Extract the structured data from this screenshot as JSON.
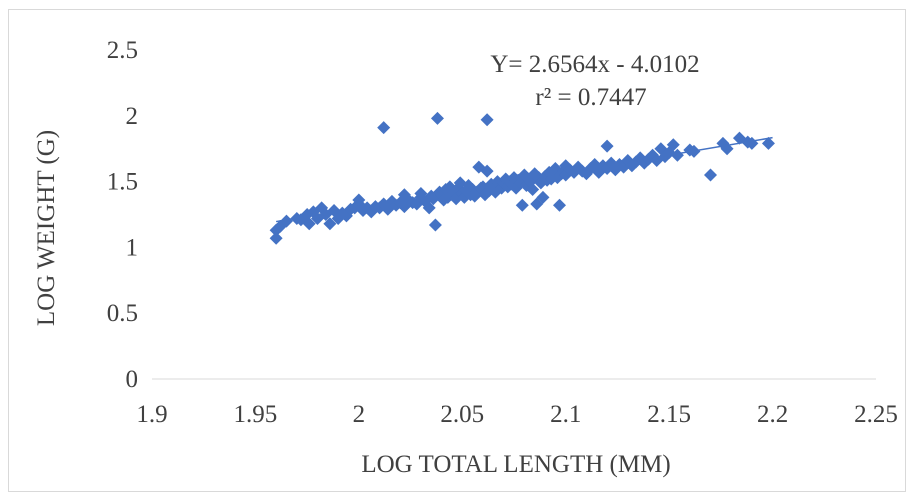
{
  "chart_data": {
    "type": "scatter",
    "title": "",
    "xlabel": "LOG TOTAL LENGTH (MM)",
    "ylabel": "LOG WEIGHT (G)",
    "xlim": [
      1.9,
      2.25
    ],
    "ylim": [
      0,
      2.5
    ],
    "x_ticks": [
      "1.9",
      "1.95",
      "2",
      "2.05",
      "2.1",
      "2.15",
      "2.2",
      "2.25"
    ],
    "y_ticks": [
      "0",
      "0.5",
      "1",
      "1.5",
      "2",
      "2.5"
    ],
    "grid": false,
    "legend": "none",
    "marker": "diamond",
    "marker_color": "#4472c4",
    "trendline": {
      "equation": "Y= 2.6564x - 4.0102",
      "r_squared": "r² = 0.7447",
      "slope": 2.6564,
      "intercept": -4.0102,
      "x_range": [
        1.96,
        2.2
      ]
    },
    "series": [
      {
        "points": [
          [
            1.96,
            1.07
          ],
          [
            1.96,
            1.13
          ],
          [
            1.962,
            1.16
          ],
          [
            1.965,
            1.2
          ],
          [
            1.97,
            1.22
          ],
          [
            1.972,
            1.21
          ],
          [
            1.975,
            1.25
          ],
          [
            1.976,
            1.18
          ],
          [
            1.978,
            1.27
          ],
          [
            1.98,
            1.22
          ],
          [
            1.982,
            1.3
          ],
          [
            1.984,
            1.25
          ],
          [
            1.986,
            1.18
          ],
          [
            1.988,
            1.28
          ],
          [
            1.99,
            1.22
          ],
          [
            1.992,
            1.26
          ],
          [
            1.994,
            1.24
          ],
          [
            1.996,
            1.29
          ],
          [
            1.998,
            1.3
          ],
          [
            2.0,
            1.33
          ],
          [
            2.0,
            1.36
          ],
          [
            2.002,
            1.28
          ],
          [
            2.004,
            1.3
          ],
          [
            2.006,
            1.27
          ],
          [
            2.008,
            1.31
          ],
          [
            2.01,
            1.3
          ],
          [
            2.012,
            1.33
          ],
          [
            2.012,
            1.91
          ],
          [
            2.014,
            1.29
          ],
          [
            2.016,
            1.35
          ],
          [
            2.018,
            1.32
          ],
          [
            2.02,
            1.34
          ],
          [
            2.022,
            1.4
          ],
          [
            2.022,
            1.31
          ],
          [
            2.024,
            1.36
          ],
          [
            2.026,
            1.34
          ],
          [
            2.028,
            1.33
          ],
          [
            2.03,
            1.38
          ],
          [
            2.03,
            1.41
          ],
          [
            2.032,
            1.35
          ],
          [
            2.034,
            1.3
          ],
          [
            2.035,
            1.39
          ],
          [
            2.036,
            1.37
          ],
          [
            2.037,
            1.17
          ],
          [
            2.038,
            1.98
          ],
          [
            2.039,
            1.42
          ],
          [
            2.04,
            1.4
          ],
          [
            2.041,
            1.36
          ],
          [
            2.042,
            1.44
          ],
          [
            2.043,
            1.38
          ],
          [
            2.044,
            1.46
          ],
          [
            2.045,
            1.4
          ],
          [
            2.046,
            1.42
          ],
          [
            2.047,
            1.37
          ],
          [
            2.048,
            1.45
          ],
          [
            2.049,
            1.49
          ],
          [
            2.05,
            1.41
          ],
          [
            2.051,
            1.38
          ],
          [
            2.052,
            1.43
          ],
          [
            2.053,
            1.47
          ],
          [
            2.054,
            1.4
          ],
          [
            2.055,
            1.44
          ],
          [
            2.056,
            1.39
          ],
          [
            2.057,
            1.42
          ],
          [
            2.058,
            1.61
          ],
          [
            2.059,
            1.45
          ],
          [
            2.06,
            1.46
          ],
          [
            2.061,
            1.4
          ],
          [
            2.062,
            1.97
          ],
          [
            2.062,
            1.58
          ],
          [
            2.063,
            1.43
          ],
          [
            2.064,
            1.48
          ],
          [
            2.065,
            1.44
          ],
          [
            2.066,
            1.42
          ],
          [
            2.067,
            1.5
          ],
          [
            2.068,
            1.47
          ],
          [
            2.069,
            1.45
          ],
          [
            2.07,
            1.49
          ],
          [
            2.071,
            1.52
          ],
          [
            2.072,
            1.46
          ],
          [
            2.073,
            1.5
          ],
          [
            2.074,
            1.48
          ],
          [
            2.075,
            1.53
          ],
          [
            2.076,
            1.45
          ],
          [
            2.077,
            1.51
          ],
          [
            2.078,
            1.49
          ],
          [
            2.079,
            1.32
          ],
          [
            2.08,
            1.55
          ],
          [
            2.081,
            1.47
          ],
          [
            2.082,
            1.52
          ],
          [
            2.083,
            1.5
          ],
          [
            2.084,
            1.44
          ],
          [
            2.085,
            1.56
          ],
          [
            2.086,
            1.33
          ],
          [
            2.087,
            1.53
          ],
          [
            2.088,
            1.49
          ],
          [
            2.089,
            1.38
          ],
          [
            2.09,
            1.54
          ],
          [
            2.091,
            1.51
          ],
          [
            2.092,
            1.57
          ],
          [
            2.093,
            1.52
          ],
          [
            2.094,
            1.55
          ],
          [
            2.095,
            1.6
          ],
          [
            2.096,
            1.53
          ],
          [
            2.097,
            1.32
          ],
          [
            2.098,
            1.56
          ],
          [
            2.099,
            1.58
          ],
          [
            2.1,
            1.62
          ],
          [
            2.1,
            1.55
          ],
          [
            2.102,
            1.59
          ],
          [
            2.104,
            1.57
          ],
          [
            2.106,
            1.61
          ],
          [
            2.108,
            1.58
          ],
          [
            2.11,
            1.56
          ],
          [
            2.112,
            1.6
          ],
          [
            2.114,
            1.63
          ],
          [
            2.116,
            1.57
          ],
          [
            2.118,
            1.62
          ],
          [
            2.12,
            1.77
          ],
          [
            2.12,
            1.6
          ],
          [
            2.122,
            1.64
          ],
          [
            2.124,
            1.59
          ],
          [
            2.126,
            1.63
          ],
          [
            2.128,
            1.61
          ],
          [
            2.13,
            1.66
          ],
          [
            2.132,
            1.62
          ],
          [
            2.134,
            1.65
          ],
          [
            2.136,
            1.68
          ],
          [
            2.138,
            1.64
          ],
          [
            2.14,
            1.67
          ],
          [
            2.142,
            1.7
          ],
          [
            2.144,
            1.66
          ],
          [
            2.146,
            1.75
          ],
          [
            2.148,
            1.69
          ],
          [
            2.15,
            1.72
          ],
          [
            2.152,
            1.78
          ],
          [
            2.154,
            1.7
          ],
          [
            2.16,
            1.74
          ],
          [
            2.162,
            1.73
          ],
          [
            2.17,
            1.55
          ],
          [
            2.176,
            1.79
          ],
          [
            2.178,
            1.75
          ],
          [
            2.184,
            1.83
          ],
          [
            2.188,
            1.8
          ],
          [
            2.19,
            1.79
          ],
          [
            2.198,
            1.79
          ]
        ]
      }
    ]
  }
}
